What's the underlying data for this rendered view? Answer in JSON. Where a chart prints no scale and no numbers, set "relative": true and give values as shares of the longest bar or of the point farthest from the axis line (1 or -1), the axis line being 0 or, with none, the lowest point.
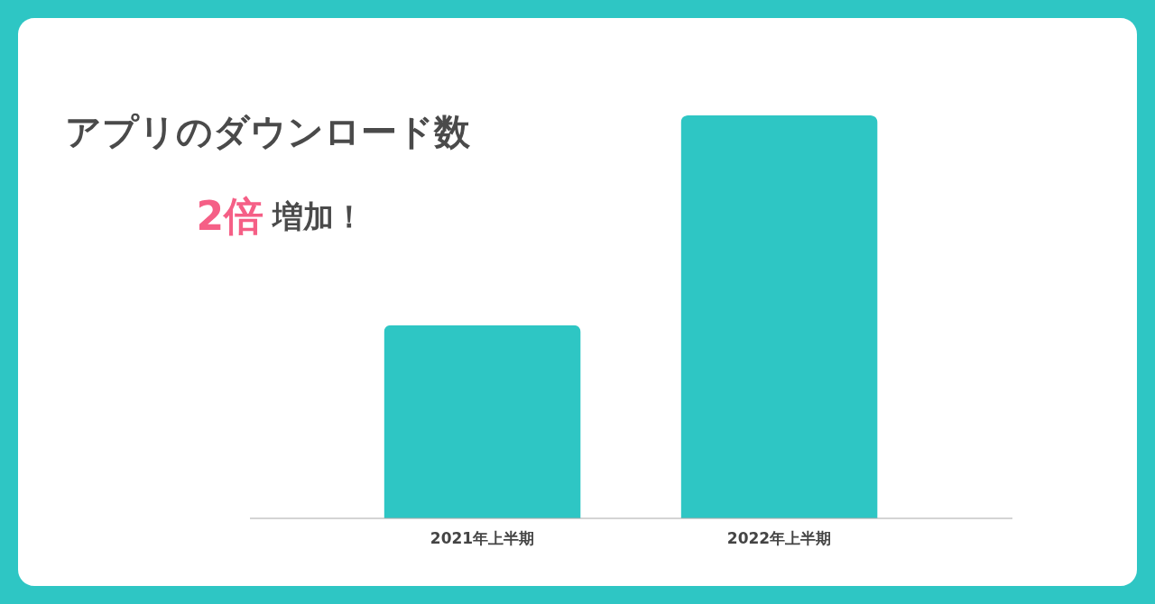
{
  "chart_data": {
    "type": "bar",
    "title": "アプリのダウンロード数",
    "annotations": [
      "2倍 増加！"
    ],
    "categories": [
      "2021年上半期",
      "2022年上半期"
    ],
    "values": [
      0.48,
      1
    ],
    "color": "#2ec6c4",
    "relative": true
  }
}
